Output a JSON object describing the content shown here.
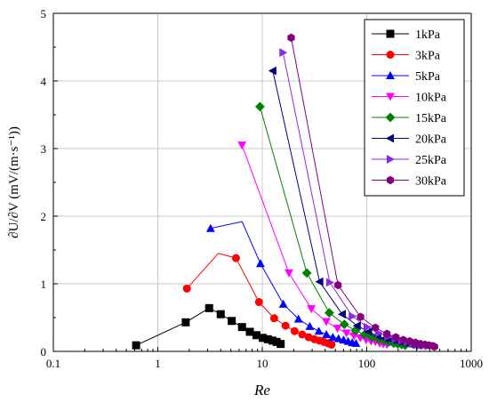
{
  "chart_data": {
    "type": "line",
    "xlabel": "Re",
    "ylabel": "∂U/∂V  (mV/(m·s⁻¹))",
    "xscale": "log",
    "xlim": [
      0.1,
      1000
    ],
    "ylim": [
      0,
      5
    ],
    "xticks": [
      0.1,
      1,
      10,
      100,
      1000
    ],
    "xtick_labels": [
      "0.1",
      "1",
      "10",
      "100",
      "1000"
    ],
    "yticks": [
      0,
      1,
      2,
      3,
      4,
      5
    ],
    "ytick_labels": [
      "0",
      "1",
      "2",
      "3",
      "4",
      "5"
    ],
    "grid": true,
    "legend_position": "top-right",
    "series": [
      {
        "name": "1kPa",
        "color": "#000000",
        "marker": "square",
        "x": [
          0.62,
          1.85,
          3.1,
          4.0,
          5.1,
          6.4,
          7.6,
          8.8,
          10.1,
          11.3,
          12.5,
          13.7,
          15.0
        ],
        "y": [
          0.09,
          0.43,
          0.64,
          0.55,
          0.45,
          0.36,
          0.29,
          0.24,
          0.2,
          0.18,
          0.16,
          0.14,
          0.11
        ],
        "marker_flags": [
          1,
          1,
          1,
          1,
          1,
          1,
          1,
          1,
          1,
          1,
          1,
          1,
          1
        ]
      },
      {
        "name": "3kPa",
        "color": "#ff0000",
        "marker": "circle",
        "x": [
          1.9,
          3.8,
          5.6,
          9.3,
          13.0,
          16.7,
          20.4,
          24.1,
          27.8,
          31.5,
          35.2,
          38.9,
          42.5,
          46.0
        ],
        "y": [
          0.93,
          1.45,
          1.38,
          0.73,
          0.49,
          0.38,
          0.3,
          0.25,
          0.21,
          0.18,
          0.16,
          0.14,
          0.12,
          0.1
        ],
        "marker_flags": [
          1,
          0,
          1,
          1,
          1,
          1,
          1,
          1,
          1,
          1,
          1,
          1,
          1,
          1
        ]
      },
      {
        "name": "5kPa",
        "color": "#0000ff",
        "marker": "triangle-up",
        "x": [
          3.2,
          6.4,
          9.6,
          15.9,
          22.2,
          28.5,
          34.8,
          41.1,
          47.4,
          53.7,
          60.0,
          66.3,
          72.6,
          78.9
        ],
        "y": [
          1.82,
          1.92,
          1.3,
          0.7,
          0.48,
          0.37,
          0.3,
          0.25,
          0.21,
          0.19,
          0.17,
          0.15,
          0.13,
          0.12
        ],
        "marker_flags": [
          1,
          0,
          1,
          1,
          1,
          1,
          1,
          1,
          1,
          1,
          1,
          1,
          1,
          1
        ]
      },
      {
        "name": "10kPa",
        "color": "#ff00ff",
        "marker": "triangle-down",
        "x": [
          6.4,
          18.0,
          29.5,
          41.0,
          52.5,
          64.0,
          75.5,
          87.0,
          98.5,
          110,
          121,
          133,
          144,
          156
        ],
        "y": [
          3.05,
          1.16,
          0.63,
          0.44,
          0.34,
          0.27,
          0.23,
          0.2,
          0.17,
          0.15,
          0.14,
          0.12,
          0.11,
          0.1
        ],
        "marker_flags": [
          1,
          1,
          1,
          1,
          1,
          1,
          1,
          1,
          1,
          1,
          1,
          1,
          1,
          1
        ]
      },
      {
        "name": "15kPa",
        "color": "#008000",
        "marker": "diamond",
        "x": [
          9.5,
          26.7,
          43.8,
          61.0,
          78.1,
          95.3,
          112,
          130,
          147,
          164,
          181,
          198,
          216,
          233
        ],
        "y": [
          3.62,
          1.16,
          0.57,
          0.4,
          0.31,
          0.25,
          0.21,
          0.18,
          0.16,
          0.14,
          0.12,
          0.11,
          0.1,
          0.09
        ],
        "marker_flags": [
          1,
          1,
          1,
          1,
          1,
          1,
          1,
          1,
          1,
          1,
          1,
          1,
          1,
          1
        ]
      },
      {
        "name": "20kPa",
        "color": "#000080",
        "marker": "triangle-left",
        "x": [
          12.6,
          35.4,
          58.2,
          81.0,
          104,
          127,
          150,
          173,
          195,
          218,
          241,
          264,
          287,
          310
        ],
        "y": [
          4.15,
          1.03,
          0.55,
          0.38,
          0.29,
          0.23,
          0.19,
          0.17,
          0.15,
          0.13,
          0.12,
          0.1,
          0.09,
          0.09
        ],
        "marker_flags": [
          1,
          1,
          1,
          1,
          1,
          1,
          1,
          1,
          1,
          1,
          1,
          1,
          1,
          1
        ]
      },
      {
        "name": "25kPa",
        "color": "#8a2be2",
        "marker": "triangle-right",
        "x": [
          15.8,
          44.3,
          72.8,
          101,
          130,
          159,
          187,
          216,
          244,
          273,
          301,
          330,
          358,
          387
        ],
        "y": [
          4.42,
          1.02,
          0.52,
          0.36,
          0.27,
          0.22,
          0.18,
          0.16,
          0.14,
          0.12,
          0.11,
          0.1,
          0.09,
          0.08
        ],
        "marker_flags": [
          1,
          1,
          1,
          1,
          1,
          1,
          1,
          1,
          1,
          1,
          1,
          1,
          1,
          1
        ]
      },
      {
        "name": "30kPa",
        "color": "#800080",
        "marker": "hexagon",
        "x": [
          18.9,
          53.1,
          87.2,
          121,
          156,
          190,
          224,
          258,
          292,
          327,
          361,
          395,
          429,
          445
        ],
        "y": [
          4.64,
          0.98,
          0.51,
          0.35,
          0.26,
          0.21,
          0.17,
          0.15,
          0.13,
          0.11,
          0.1,
          0.09,
          0.08,
          0.07
        ],
        "marker_flags": [
          1,
          1,
          1,
          1,
          1,
          1,
          1,
          1,
          1,
          1,
          1,
          1,
          1,
          1
        ]
      }
    ]
  }
}
